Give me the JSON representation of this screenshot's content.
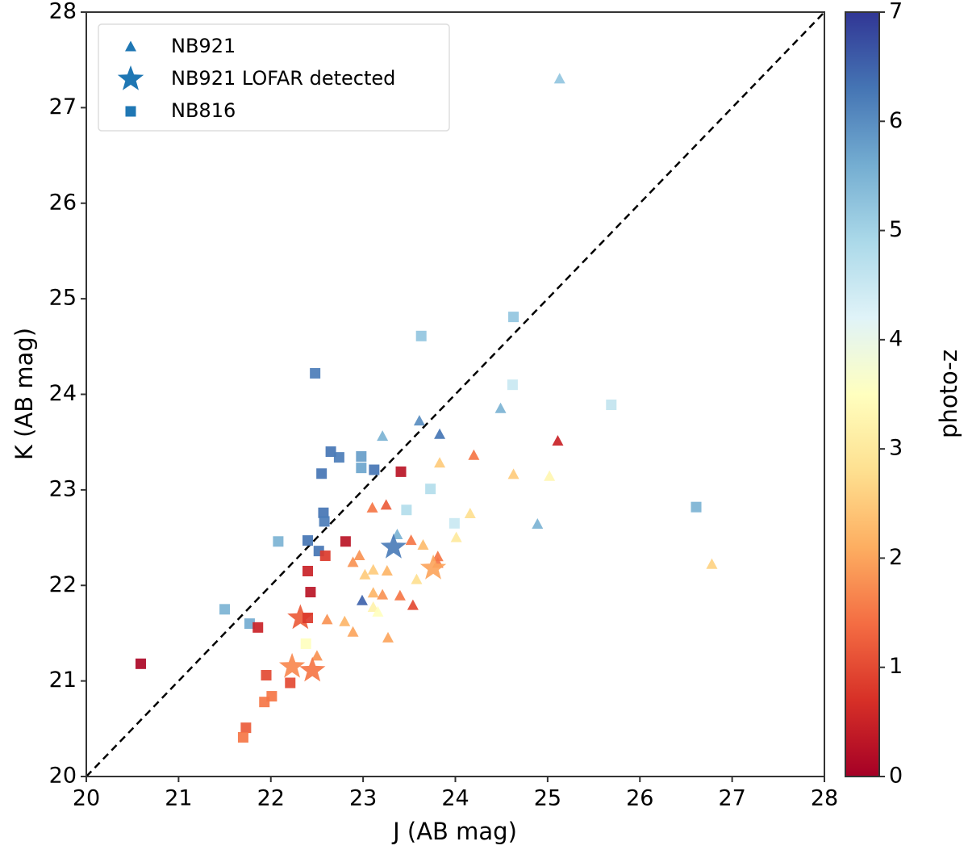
{
  "chart_data": {
    "type": "scatter",
    "x_label": "J (AB mag)",
    "y_label": "K (AB mag)",
    "colorbar_label": "photo-z",
    "xlim": [
      20,
      28
    ],
    "ylim": [
      20,
      28
    ],
    "xticks": [
      20,
      21,
      22,
      23,
      24,
      25,
      26,
      27,
      28
    ],
    "yticks": [
      20,
      21,
      22,
      23,
      24,
      25,
      26,
      27,
      28
    ],
    "clim": [
      0,
      7
    ],
    "cticks": [
      0,
      1,
      2,
      3,
      4,
      5,
      6,
      7
    ],
    "colormap": "RdYlBu",
    "legend": "upper left",
    "series": [
      {
        "name": "NB921",
        "color": "#1f77b4",
        "marker": "triangle",
        "x": [
          25.13,
          23.61,
          24.49,
          23.83,
          23.21,
          25.11,
          24.2,
          23.83,
          24.63,
          25.02,
          24.16,
          23.1,
          23.25,
          24.89,
          24.01,
          23.37,
          23.52,
          23.65,
          23.81,
          23.81,
          22.89,
          22.96,
          23.02,
          23.11,
          23.26,
          23.58,
          23.11,
          23.21,
          23.4,
          22.99,
          23.54,
          23.11,
          22.61,
          22.8,
          22.89,
          23.27,
          22.5,
          23.16,
          26.78
        ],
        "values": [
          27.3,
          23.72,
          23.85,
          23.58,
          23.56,
          23.51,
          23.36,
          23.28,
          23.16,
          23.14,
          22.75,
          22.81,
          22.84,
          22.64,
          22.5,
          22.53,
          22.47,
          22.42,
          22.3,
          22.23,
          22.24,
          22.31,
          22.11,
          22.16,
          22.15,
          22.06,
          21.92,
          21.9,
          21.89,
          21.84,
          21.79,
          21.77,
          21.64,
          21.62,
          21.51,
          21.45,
          21.26,
          21.72,
          22.22
        ],
        "z": [
          5.2,
          6.0,
          5.5,
          6.3,
          5.5,
          0.5,
          1.5,
          2.5,
          2.5,
          3.3,
          2.8,
          1.5,
          1.2,
          5.5,
          3.0,
          5.5,
          1.5,
          2.3,
          1.5,
          1.5,
          1.8,
          1.8,
          2.5,
          2.5,
          2.2,
          2.8,
          2.2,
          1.8,
          1.5,
          6.5,
          1.0,
          3.2,
          1.8,
          2.2,
          2.0,
          2.0,
          1.8,
          3.5,
          2.6
        ]
      },
      {
        "name": "NB921 LOFAR detected",
        "color": "#1f77b4",
        "marker": "star",
        "x": [
          23.33,
          23.76,
          22.32,
          22.45,
          22.23
        ],
        "values": [
          22.4,
          22.18,
          21.66,
          21.11,
          21.15
        ],
        "z": [
          6.2,
          2.0,
          1.2,
          1.5,
          1.7
        ]
      },
      {
        "name": "NB816",
        "color": "#1f77b4",
        "marker": "square",
        "x": [
          20.59,
          21.5,
          21.77,
          21.86,
          21.95,
          21.93,
          22.01,
          21.73,
          21.7,
          22.08,
          22.21,
          22.4,
          22.4,
          22.43,
          22.38,
          22.48,
          22.4,
          22.52,
          22.55,
          22.57,
          22.58,
          22.59,
          22.65,
          22.74,
          22.81,
          22.98,
          22.98,
          23.12,
          23.41,
          23.63,
          23.47,
          23.73,
          23.99,
          24.63,
          25.69,
          26.61,
          24.62
        ],
        "values": [
          21.18,
          21.75,
          21.6,
          21.56,
          21.06,
          20.78,
          20.84,
          20.51,
          20.41,
          22.46,
          20.98,
          21.66,
          22.15,
          21.93,
          21.39,
          24.22,
          22.47,
          22.36,
          23.17,
          22.76,
          22.67,
          22.31,
          23.4,
          23.34,
          22.46,
          23.35,
          23.23,
          23.21,
          23.19,
          24.61,
          22.79,
          23.01,
          22.65,
          24.81,
          23.89,
          22.82,
          24.1
        ],
        "z": [
          0.1,
          5.5,
          5.6,
          0.5,
          1.0,
          1.5,
          1.5,
          1.2,
          1.5,
          5.5,
          1.0,
          0.8,
          0.5,
          0.3,
          3.5,
          6.2,
          6.3,
          6.3,
          6.3,
          6.3,
          6.2,
          0.8,
          6.3,
          6.2,
          0.3,
          5.8,
          5.7,
          6.3,
          0.3,
          5.2,
          4.8,
          4.8,
          4.5,
          5.2,
          4.6,
          5.5,
          4.5
        ]
      }
    ]
  }
}
